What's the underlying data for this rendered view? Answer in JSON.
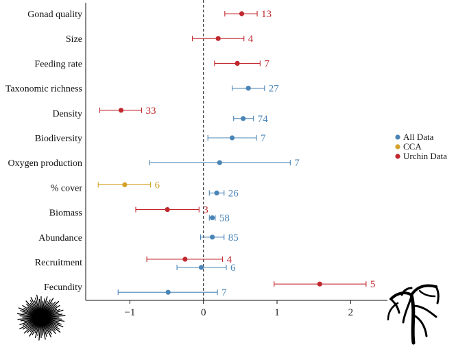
{
  "chart_data": {
    "type": "scatter",
    "categories": [
      "Gonad quality",
      "Size",
      "Feeding rate",
      "Taxonomic richness",
      "Density",
      "Biodiversity",
      "Oxygen production",
      "% cover",
      "Biomass",
      "Abundance",
      "Recruitment",
      "Fecundity"
    ],
    "xlim": [
      -1.6,
      2.5
    ],
    "xticks": [
      -1,
      0,
      1,
      2
    ],
    "xtick_labels": [
      "−1",
      "0",
      "1",
      "2"
    ],
    "reference_line": 0,
    "grid": false,
    "legend_position": "right",
    "colors": {
      "All Data": "#4a84b6",
      "CCA": "#d4a22a",
      "Urchin Data": "#c0282e"
    },
    "series": [
      {
        "name": "All Data",
        "points": [
          {
            "category": "Taxonomic richness",
            "estimate": 0.61,
            "lower": 0.39,
            "upper": 0.83,
            "n": "27"
          },
          {
            "category": "Density",
            "estimate": 0.54,
            "lower": 0.41,
            "upper": 0.68,
            "n": "74"
          },
          {
            "category": "Biodiversity",
            "estimate": 0.39,
            "lower": 0.06,
            "upper": 0.72,
            "n": "7"
          },
          {
            "category": "Oxygen production",
            "estimate": 0.22,
            "lower": -0.73,
            "upper": 1.18,
            "n": "7"
          },
          {
            "category": "% cover",
            "estimate": 0.18,
            "lower": 0.08,
            "upper": 0.28,
            "n": "26"
          },
          {
            "category": "Biomass",
            "estimate": 0.12,
            "lower": 0.08,
            "upper": 0.16,
            "n": "58"
          },
          {
            "category": "Abundance",
            "estimate": 0.12,
            "lower": -0.04,
            "upper": 0.28,
            "n": "85"
          },
          {
            "category": "Recruitment",
            "estimate": -0.03,
            "lower": -0.36,
            "upper": 0.31,
            "n": "6"
          },
          {
            "category": "Fecundity",
            "estimate": -0.48,
            "lower": -1.16,
            "upper": 0.19,
            "n": "7"
          }
        ]
      },
      {
        "name": "CCA",
        "points": [
          {
            "category": "% cover",
            "estimate": -1.07,
            "lower": -1.43,
            "upper": -0.72,
            "n": "6"
          }
        ]
      },
      {
        "name": "Urchin Data",
        "points": [
          {
            "category": "Gonad quality",
            "estimate": 0.52,
            "lower": 0.29,
            "upper": 0.73,
            "n": "13"
          },
          {
            "category": "Size",
            "estimate": 0.2,
            "lower": -0.15,
            "upper": 0.55,
            "n": "4"
          },
          {
            "category": "Feeding rate",
            "estimate": 0.46,
            "lower": 0.15,
            "upper": 0.77,
            "n": "7"
          },
          {
            "category": "Density",
            "estimate": -1.12,
            "lower": -1.41,
            "upper": -0.84,
            "n": "33"
          },
          {
            "category": "Biomass",
            "estimate": -0.49,
            "lower": -0.92,
            "upper": -0.06,
            "n": "3"
          },
          {
            "category": "Recruitment",
            "estimate": -0.25,
            "lower": -0.77,
            "upper": 0.26,
            "n": "4"
          },
          {
            "category": "Fecundity",
            "estimate": 1.58,
            "lower": 0.96,
            "upper": 2.21,
            "n": "5"
          }
        ]
      }
    ]
  },
  "icons": {
    "bottom_left": "sea-urchin-icon",
    "bottom_right": "kelp-icon"
  }
}
